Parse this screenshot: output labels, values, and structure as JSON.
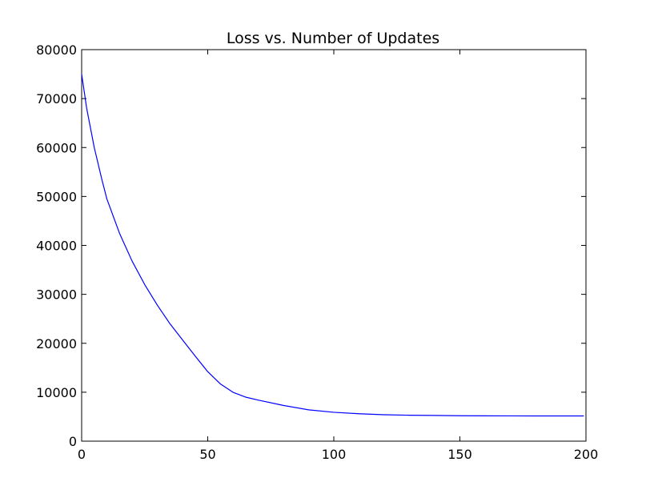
{
  "chart_data": {
    "type": "line",
    "title": "Loss vs. Number of Updates",
    "xlabel": "",
    "ylabel": "",
    "xlim": [
      0,
      200
    ],
    "ylim": [
      0,
      80000
    ],
    "xticks": [
      0,
      50,
      100,
      150,
      200
    ],
    "yticks": [
      0,
      10000,
      20000,
      30000,
      40000,
      50000,
      60000,
      70000,
      80000
    ],
    "xtick_labels": [
      "0",
      "50",
      "100",
      "150",
      "200"
    ],
    "ytick_labels": [
      "0",
      "10000",
      "20000",
      "30000",
      "40000",
      "50000",
      "60000",
      "70000",
      "80000"
    ],
    "grid": false,
    "legend": "none",
    "series": [
      {
        "color": "#0000ff",
        "x": [
          0,
          2,
          5,
          8,
          10,
          15,
          20,
          25,
          30,
          35,
          40,
          45,
          50,
          55,
          60,
          65,
          70,
          80,
          90,
          100,
          110,
          120,
          130,
          140,
          150,
          160,
          170,
          180,
          190,
          199
        ],
        "y": [
          75000,
          68000,
          60000,
          53500,
          49500,
          42500,
          36800,
          32000,
          27800,
          24000,
          20700,
          17400,
          14200,
          11700,
          10000,
          9000,
          8400,
          7300,
          6400,
          5900,
          5600,
          5400,
          5300,
          5250,
          5200,
          5180,
          5160,
          5150,
          5150,
          5150
        ]
      }
    ]
  }
}
